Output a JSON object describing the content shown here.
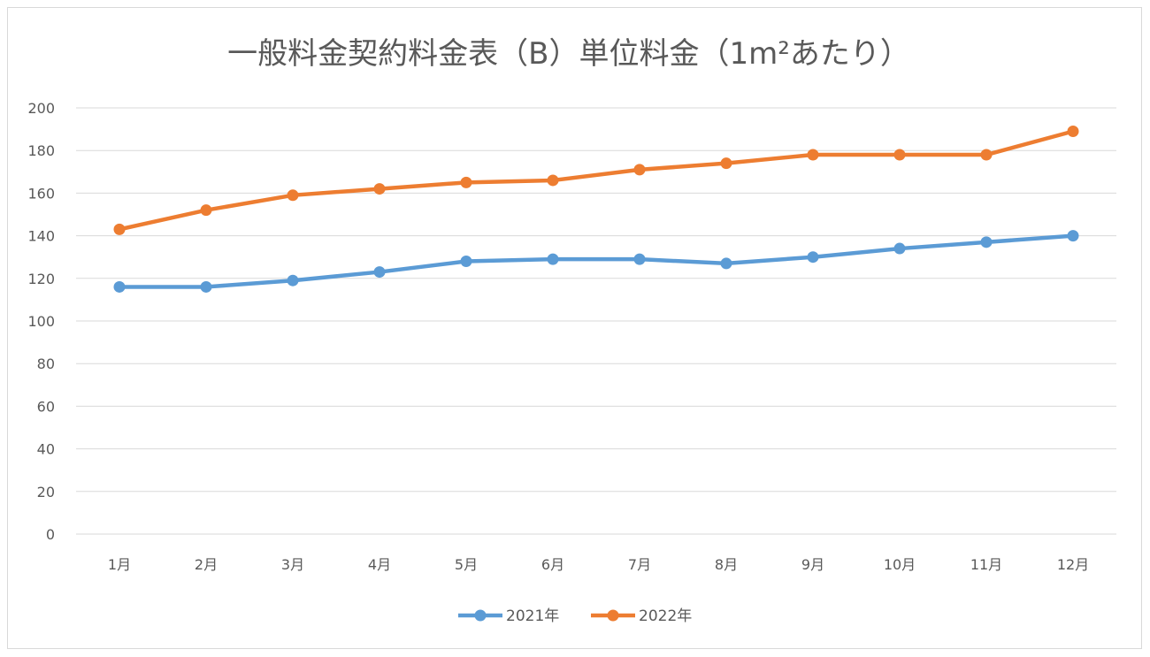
{
  "chart_data": {
    "type": "line",
    "title": "一般料金契約料金表（B）単位料金（1m²あたり）",
    "xlabel": "",
    "ylabel": "",
    "categories": [
      "1月",
      "2月",
      "3月",
      "4月",
      "5月",
      "6月",
      "7月",
      "8月",
      "9月",
      "10月",
      "11月",
      "12月"
    ],
    "yticks": [
      "0",
      "20",
      "40",
      "60",
      "80",
      "100",
      "120",
      "140",
      "160",
      "180",
      "200"
    ],
    "ylim": [
      0,
      200
    ],
    "grid": true,
    "legend_position": "bottom",
    "series": [
      {
        "name": "2021年",
        "color": "#5b9bd5",
        "values": [
          116,
          116,
          119,
          123,
          128,
          129,
          129,
          127,
          130,
          134,
          137,
          140
        ]
      },
      {
        "name": "2022年",
        "color": "#ed7d31",
        "values": [
          143,
          152,
          159,
          162,
          165,
          166,
          171,
          174,
          178,
          178,
          178,
          189
        ]
      }
    ]
  }
}
